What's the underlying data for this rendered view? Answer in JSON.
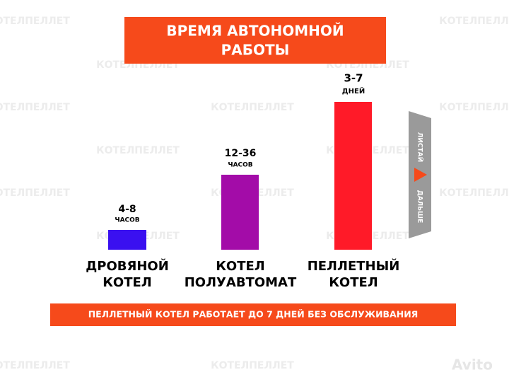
{
  "watermark": "КОТЕЛПЕЛЛЕТ",
  "title": [
    "ВРЕМЯ АВТОНОМНОЙ",
    "РАБОТЫ"
  ],
  "bars": [
    {
      "amount": "4-8",
      "unit": "ЧАСОВ",
      "name": [
        "ДРОВЯНОЙ",
        "КОТЕЛ"
      ]
    },
    {
      "amount": "12-36",
      "unit": "ЧАСОВ",
      "name": [
        "КОТЕЛ",
        "ПОЛУАВТОМАТ"
      ]
    },
    {
      "amount": "3-7",
      "unit": "ДНЕЙ",
      "name": [
        "ПЕЛЛЕТНЫЙ",
        "КОТЕЛ"
      ]
    }
  ],
  "side": {
    "top": "ЛИСТАЙ",
    "bottom": "ДАЛЬШЕ"
  },
  "banner": "ПЕЛЛЕТНЫЙ КОТЕЛ РАБОТАЕТ ДО 7 ДНЕЙ БЕЗ ОБСЛУЖИВАНИЯ",
  "brand": "Avito"
}
